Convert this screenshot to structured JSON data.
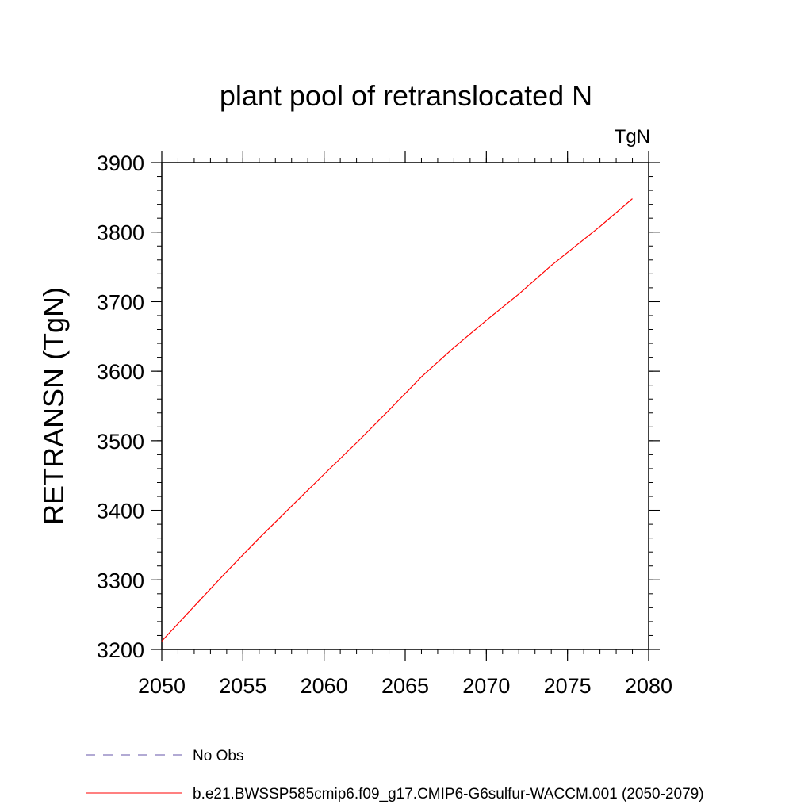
{
  "chart_data": {
    "type": "line",
    "title": "plant pool of retranslocated N",
    "units_label": "TgN",
    "ylabel": "RETRANSN  (TgN)",
    "xlabel": "",
    "xlim": [
      2050,
      2080
    ],
    "ylim": [
      3200,
      3900
    ],
    "x_ticks": [
      2050,
      2055,
      2060,
      2065,
      2070,
      2075,
      2080
    ],
    "y_ticks": [
      3200,
      3300,
      3400,
      3500,
      3600,
      3700,
      3800,
      3900
    ],
    "x_minor_step": 1,
    "y_minor_step": 20,
    "grid": false,
    "legend_position": "bottom-left",
    "series": [
      {
        "name": "b.e21.BWSSP585cmip6.f09_g17.CMIP6-G6sulfur-WACCM.001 (2050-2079)",
        "color": "#ff0000",
        "dash": "solid",
        "x": [
          2050,
          2052,
          2054,
          2056,
          2058,
          2060,
          2062,
          2064,
          2066,
          2068,
          2070,
          2072,
          2074,
          2077,
          2079
        ],
        "y": [
          3212,
          3262,
          3312,
          3360,
          3406,
          3452,
          3497,
          3544,
          3592,
          3634,
          3673,
          3711,
          3752,
          3808,
          3848
        ]
      }
    ],
    "legend": [
      {
        "label": "No Obs",
        "color": "#6655aa",
        "dash": "dashed"
      },
      {
        "label": "b.e21.BWSSP585cmip6.f09_g17.CMIP6-G6sulfur-WACCM.001 (2050-2079)",
        "color": "#ff0000",
        "dash": "solid"
      }
    ]
  }
}
